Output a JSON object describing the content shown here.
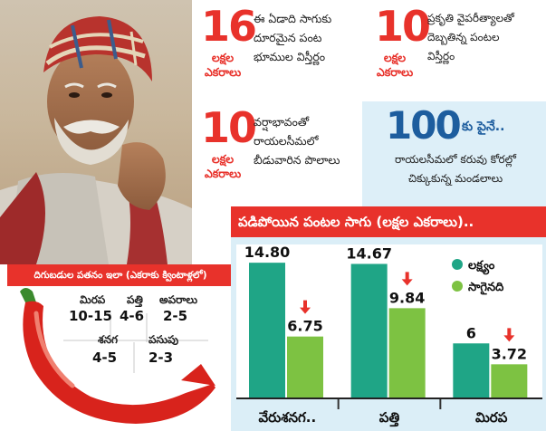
{
  "stats": [
    {
      "value": "16",
      "unit": "లక్షల\nఎకరాలు",
      "text": "ఈ ఏడాది సాగుకు\nదూరమైన పంట\nభూముల విస్తీర్ణం"
    },
    {
      "value": "10",
      "unit": "లక్షల\nఎకరాలు",
      "text": "ప్రకృతి వైపరీత్యాలతో\nదెబ్బతిన్న పంటల\nవిస్తీర్ణం"
    },
    {
      "value": "10",
      "unit": "లక్షల\nఎకరాలు",
      "text": "వర్షాభావంతో\nరాయలసీమలో\nబీడువారిన పొలాలు"
    },
    {
      "value": "100",
      "suffix": "కు పైనే..",
      "text": "రాయలసీమలో కరువు కోరల్లో\nచిక్కుకున్న మండలాలు"
    }
  ],
  "yield_panel": {
    "title": "దిగుబడుల పతనం ఇలా (ఎకరాకు క్వింటాళ్లలో)",
    "items": [
      {
        "label": "మిరప",
        "value": "10-15"
      },
      {
        "label": "పత్తి",
        "value": "4-6"
      },
      {
        "label": "అపరాలు",
        "value": "2-5"
      },
      {
        "label": "శనగ",
        "value": "4-5"
      },
      {
        "label": "పసుపు",
        "value": "2-3"
      }
    ]
  },
  "chart_data": {
    "type": "bar",
    "title": "పడిపోయిన పంటల సాగు (లక్షల ఎకరాలు)..",
    "categories": [
      "వేరుశనగ..",
      "పత్తి",
      "మిరప"
    ],
    "series": [
      {
        "name": "లక్ష్యం",
        "values": [
          14.8,
          14.67,
          6
        ],
        "labels": [
          "14.80",
          "14.67",
          "6"
        ],
        "color": "#1fa586"
      },
      {
        "name": "సాగైనది",
        "values": [
          6.75,
          9.84,
          3.72
        ],
        "labels": [
          "6.75",
          "9.84",
          "3.72"
        ],
        "color": "#7dc242"
      }
    ],
    "ylim": [
      0,
      16
    ],
    "legend_position": "top-right",
    "down_arrow_color": "#e8322b"
  }
}
